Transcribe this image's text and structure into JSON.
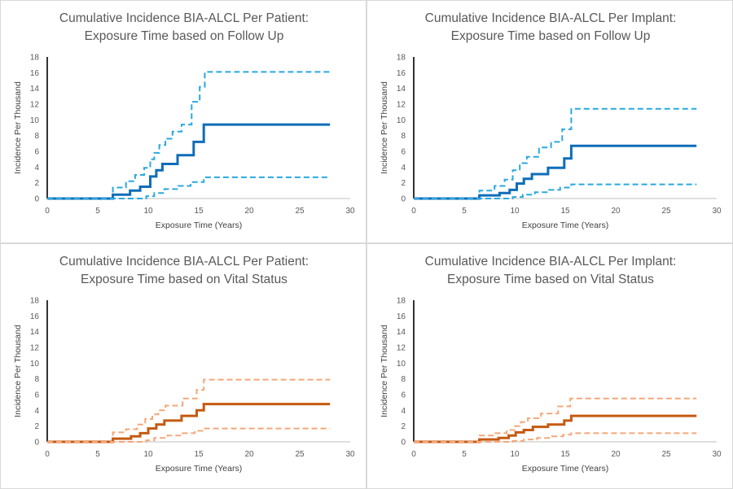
{
  "chart_data": [
    {
      "type": "line",
      "title": "Cumulative Incidence BIA-ALCL Per Patient:",
      "subtitle": "Exposure Time based on Follow Up",
      "xlabel": "Exposure Time (Years)",
      "ylabel": "Incidence Per Thousand",
      "xlim": [
        0,
        30
      ],
      "ylim": [
        0,
        18
      ],
      "xticks": [
        "0",
        "5",
        "10",
        "15",
        "20",
        "25",
        "30"
      ],
      "yticks": [
        "0",
        "2",
        "4",
        "6",
        "8",
        "10",
        "12",
        "14",
        "16",
        "18"
      ],
      "grid": false,
      "series": [
        {
          "name": "Upper bound",
          "style": "dashed",
          "color": "#29a8e0",
          "x": [
            0,
            6.5,
            6.5,
            7.8,
            7.8,
            8.7,
            8.7,
            9.6,
            9.6,
            10.2,
            10.2,
            10.6,
            10.6,
            11.1,
            11.1,
            11.7,
            11.7,
            12.4,
            12.4,
            13.3,
            13.3,
            14.3,
            14.3,
            15.1,
            15.1,
            15.6,
            15.6,
            28
          ],
          "y": [
            0,
            0,
            1.4,
            1.4,
            2.2,
            2.2,
            3.0,
            3.0,
            3.9,
            3.9,
            5.0,
            5.0,
            5.8,
            5.8,
            6.8,
            6.8,
            7.6,
            7.6,
            8.5,
            8.5,
            9.4,
            9.4,
            12.3,
            12.3,
            14.2,
            14.2,
            16.1,
            16.1
          ]
        },
        {
          "name": "Point estimate",
          "style": "solid",
          "color": "#0f6db8",
          "x": [
            0,
            6.5,
            6.5,
            8.2,
            8.2,
            9.2,
            9.2,
            10.2,
            10.2,
            10.8,
            10.8,
            11.4,
            11.4,
            12.9,
            12.9,
            14.5,
            14.5,
            15.5,
            15.5,
            28
          ],
          "y": [
            0,
            0,
            0.5,
            0.5,
            1.0,
            1.0,
            1.5,
            1.5,
            2.8,
            2.8,
            3.6,
            3.6,
            4.4,
            4.4,
            5.5,
            5.5,
            7.2,
            7.2,
            9.4,
            9.4
          ]
        },
        {
          "name": "Lower bound",
          "style": "dashed",
          "color": "#29a8e0",
          "x": [
            0,
            9.8,
            9.8,
            10.6,
            10.6,
            11.6,
            11.6,
            13.0,
            13.0,
            14.2,
            14.2,
            15.5,
            15.5,
            28
          ],
          "y": [
            0,
            0,
            0.3,
            0.3,
            0.7,
            0.7,
            1.2,
            1.2,
            1.6,
            1.6,
            2.1,
            2.1,
            2.7,
            2.7
          ]
        }
      ]
    },
    {
      "type": "line",
      "title": "Cumulative Incidence BIA-ALCL Per Implant:",
      "subtitle": "Exposure Time based on Follow Up",
      "xlabel": "Exposure Time (Years)",
      "ylabel": "Incidence Per Thousand",
      "xlim": [
        0,
        30
      ],
      "ylim": [
        0,
        18
      ],
      "xticks": [
        "0",
        "5",
        "10",
        "15",
        "20",
        "25",
        "30"
      ],
      "yticks": [
        "0",
        "2",
        "4",
        "6",
        "8",
        "10",
        "12",
        "14",
        "16",
        "18"
      ],
      "grid": false,
      "series": [
        {
          "name": "Upper bound",
          "style": "dashed",
          "color": "#29a8e0",
          "x": [
            0,
            6.5,
            6.5,
            8.0,
            8.0,
            9.0,
            9.0,
            9.8,
            9.8,
            10.5,
            10.5,
            11.2,
            11.2,
            12.4,
            12.4,
            13.6,
            13.6,
            14.7,
            14.7,
            15.6,
            15.6,
            28
          ],
          "y": [
            0,
            0,
            1.0,
            1.0,
            1.6,
            1.6,
            2.4,
            2.4,
            3.6,
            3.6,
            4.5,
            4.5,
            5.3,
            5.3,
            6.5,
            6.5,
            7.2,
            7.2,
            8.8,
            8.8,
            11.4,
            11.4
          ]
        },
        {
          "name": "Point estimate",
          "style": "solid",
          "color": "#0f6db8",
          "x": [
            0,
            6.5,
            6.5,
            8.5,
            8.5,
            9.5,
            9.5,
            10.2,
            10.2,
            10.9,
            10.9,
            11.7,
            11.7,
            13.3,
            13.3,
            14.9,
            14.9,
            15.6,
            15.6,
            28
          ],
          "y": [
            0,
            0,
            0.4,
            0.4,
            0.7,
            0.7,
            1.1,
            1.1,
            1.9,
            1.9,
            2.5,
            2.5,
            3.1,
            3.1,
            3.9,
            3.9,
            5.1,
            5.1,
            6.7,
            6.7
          ]
        },
        {
          "name": "Lower bound",
          "style": "dashed",
          "color": "#29a8e0",
          "x": [
            0,
            9.8,
            9.8,
            10.8,
            10.8,
            12.0,
            12.0,
            13.4,
            13.4,
            14.5,
            14.5,
            15.6,
            15.6,
            28
          ],
          "y": [
            0,
            0,
            0.2,
            0.2,
            0.5,
            0.5,
            0.8,
            0.8,
            1.1,
            1.1,
            1.4,
            1.4,
            1.8,
            1.8
          ]
        }
      ]
    },
    {
      "type": "line",
      "title": "Cumulative Incidence BIA-ALCL Per Patient:",
      "subtitle": "Exposure Time based on Vital Status",
      "xlabel": "Exposure Time (Years)",
      "ylabel": "Incidence Per Thousand",
      "xlim": [
        0,
        30
      ],
      "ylim": [
        0,
        18
      ],
      "xticks": [
        "0",
        "5",
        "10",
        "15",
        "20",
        "25",
        "30"
      ],
      "yticks": [
        "0",
        "2",
        "4",
        "6",
        "8",
        "10",
        "12",
        "14",
        "16",
        "18"
      ],
      "grid": false,
      "series": [
        {
          "name": "Upper bound",
          "style": "dashed",
          "color": "#f4a77a",
          "x": [
            0,
            6.5,
            6.5,
            7.8,
            7.8,
            8.9,
            8.9,
            9.7,
            9.7,
            10.4,
            10.4,
            11.0,
            11.0,
            11.7,
            11.7,
            13.4,
            13.4,
            14.8,
            14.8,
            15.5,
            15.5,
            28
          ],
          "y": [
            0,
            0,
            1.2,
            1.2,
            1.6,
            1.6,
            2.2,
            2.2,
            2.9,
            2.9,
            3.5,
            3.5,
            4.0,
            4.0,
            4.6,
            4.6,
            5.5,
            5.5,
            6.6,
            6.6,
            7.9,
            7.9
          ]
        },
        {
          "name": "Point estimate",
          "style": "solid",
          "color": "#c55a11",
          "x": [
            0,
            6.5,
            6.5,
            8.3,
            8.3,
            9.2,
            9.2,
            10.0,
            10.0,
            10.8,
            10.8,
            11.6,
            11.6,
            13.3,
            13.3,
            14.8,
            14.8,
            15.5,
            15.5,
            28
          ],
          "y": [
            0,
            0,
            0.4,
            0.4,
            0.7,
            0.7,
            1.1,
            1.1,
            1.7,
            1.7,
            2.2,
            2.2,
            2.7,
            2.7,
            3.3,
            3.3,
            4.0,
            4.0,
            4.8,
            4.8
          ]
        },
        {
          "name": "Lower bound",
          "style": "dashed",
          "color": "#f4a77a",
          "x": [
            0,
            9.8,
            9.8,
            10.6,
            10.6,
            11.9,
            11.9,
            13.4,
            13.4,
            14.6,
            14.6,
            15.5,
            15.5,
            28
          ],
          "y": [
            0,
            0,
            0.2,
            0.2,
            0.5,
            0.5,
            0.8,
            0.8,
            1.1,
            1.1,
            1.4,
            1.4,
            1.7,
            1.7
          ]
        }
      ]
    },
    {
      "type": "line",
      "title": "Cumulative Incidence BIA-ALCL Per Implant:",
      "subtitle": "Exposure Time based on Vital Status",
      "xlabel": "Exposure Time (Years)",
      "ylabel": "Incidence Per Thousand",
      "xlim": [
        0,
        30
      ],
      "ylim": [
        0,
        18
      ],
      "xticks": [
        "0",
        "5",
        "10",
        "15",
        "20",
        "25",
        "30"
      ],
      "yticks": [
        "0",
        "2",
        "4",
        "6",
        "8",
        "10",
        "12",
        "14",
        "16",
        "18"
      ],
      "grid": false,
      "series": [
        {
          "name": "Upper bound",
          "style": "dashed",
          "color": "#f4a77a",
          "x": [
            0,
            6.5,
            6.5,
            8.0,
            8.0,
            9.2,
            9.2,
            10.0,
            10.0,
            10.6,
            10.6,
            11.3,
            11.3,
            12.6,
            12.6,
            14.3,
            14.3,
            15.5,
            15.5,
            28
          ],
          "y": [
            0,
            0,
            0.8,
            0.8,
            1.1,
            1.1,
            1.5,
            1.5,
            2.0,
            2.0,
            2.5,
            2.5,
            3.0,
            3.0,
            3.6,
            3.6,
            4.5,
            4.5,
            5.5,
            5.5
          ]
        },
        {
          "name": "Point estimate",
          "style": "solid",
          "color": "#c55a11",
          "x": [
            0,
            6.5,
            6.5,
            8.4,
            8.4,
            9.4,
            9.4,
            10.1,
            10.1,
            10.9,
            10.9,
            11.8,
            11.8,
            13.3,
            13.3,
            14.9,
            14.9,
            15.6,
            15.6,
            28
          ],
          "y": [
            0,
            0,
            0.3,
            0.3,
            0.5,
            0.5,
            0.8,
            0.8,
            1.2,
            1.2,
            1.5,
            1.5,
            1.9,
            1.9,
            2.2,
            2.2,
            2.7,
            2.7,
            3.3,
            3.3
          ]
        },
        {
          "name": "Lower bound",
          "style": "dashed",
          "color": "#f4a77a",
          "x": [
            0,
            9.8,
            9.8,
            10.9,
            10.9,
            12.2,
            12.2,
            13.7,
            13.7,
            14.8,
            14.8,
            15.6,
            15.6,
            28
          ],
          "y": [
            0,
            0,
            0.1,
            0.1,
            0.3,
            0.3,
            0.5,
            0.5,
            0.7,
            0.7,
            0.9,
            0.9,
            1.1,
            1.1
          ]
        }
      ]
    }
  ]
}
